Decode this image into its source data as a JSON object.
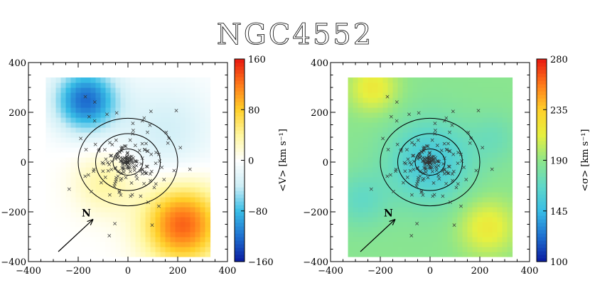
{
  "title": "NGC4552",
  "chart_data": [
    {
      "type": "heatmap",
      "panel": "velocity",
      "xlim": [
        -400,
        400
      ],
      "ylim": [
        -400,
        400
      ],
      "xticks": [
        -400,
        -200,
        0,
        200,
        400
      ],
      "yticks": [
        -400,
        -200,
        0,
        200,
        400
      ],
      "colorbar": {
        "label": "<V> [km s⁻¹]",
        "min": -160,
        "max": 160,
        "ticks": [
          160,
          80,
          0,
          -80,
          -160
        ],
        "tick_labels": [
          "160",
          "80",
          "0",
          "−80",
          "−160"
        ],
        "colormap": [
          "#0a1aa0",
          "#1e6fd0",
          "#38bde6",
          "#cdeef6",
          "#ffffff",
          "#fff7a0",
          "#ffd02a",
          "#ff7a1a",
          "#e81810"
        ]
      },
      "map_region": {
        "x": [
          -330,
          330
        ],
        "y": [
          -380,
          340
        ]
      },
      "field_components": [
        {
          "x": -170,
          "y": 250,
          "amplitude": -120,
          "sigma": 90
        },
        {
          "x": 220,
          "y": -250,
          "amplitude": 130,
          "sigma": 110
        },
        {
          "x": -90,
          "y": -80,
          "amplitude": 40,
          "sigma": 90
        },
        {
          "x": 150,
          "y": 130,
          "amplitude": -35,
          "sigma": 140
        }
      ],
      "ellipses_radii": [
        60,
        130,
        200
      ],
      "north_arrow": {
        "label": "N",
        "from": [
          -280,
          -360
        ],
        "to": [
          -140,
          -230
        ]
      }
    },
    {
      "type": "heatmap",
      "panel": "dispersion",
      "xlim": [
        -400,
        400
      ],
      "ylim": [
        -400,
        400
      ],
      "xticks": [
        -400,
        -200,
        0,
        200,
        400
      ],
      "yticks": [
        -400,
        -200,
        0,
        200,
        400
      ],
      "colorbar": {
        "label": "<σ> [km s⁻¹]",
        "min": 100,
        "max": 280,
        "ticks": [
          280,
          235,
          190,
          145,
          100
        ],
        "tick_labels": [
          "280",
          "235",
          "190",
          "145",
          "100"
        ],
        "colormap": [
          "#0a1aa0",
          "#1e6fd0",
          "#38bde6",
          "#5fd8c8",
          "#8ee68a",
          "#e6f040",
          "#ffd02a",
          "#ff7a1a",
          "#e81810"
        ]
      },
      "map_region": {
        "x": [
          -330,
          330
        ],
        "y": [
          -380,
          340
        ]
      },
      "base_value": 188,
      "field_components": [
        {
          "x": 0,
          "y": 0,
          "amplitude": -35,
          "sigma": 120
        },
        {
          "x": -230,
          "y": 300,
          "amplitude": 30,
          "sigma": 70
        },
        {
          "x": 230,
          "y": -260,
          "amplitude": 30,
          "sigma": 80
        },
        {
          "x": -280,
          "y": -150,
          "amplitude": -18,
          "sigma": 80
        },
        {
          "x": 260,
          "y": 100,
          "amplitude": -12,
          "sigma": 70
        }
      ],
      "ellipses_radii": [
        60,
        130,
        200
      ],
      "north_arrow": {
        "label": "N",
        "from": [
          -280,
          -360
        ],
        "to": [
          -140,
          -230
        ]
      }
    }
  ]
}
